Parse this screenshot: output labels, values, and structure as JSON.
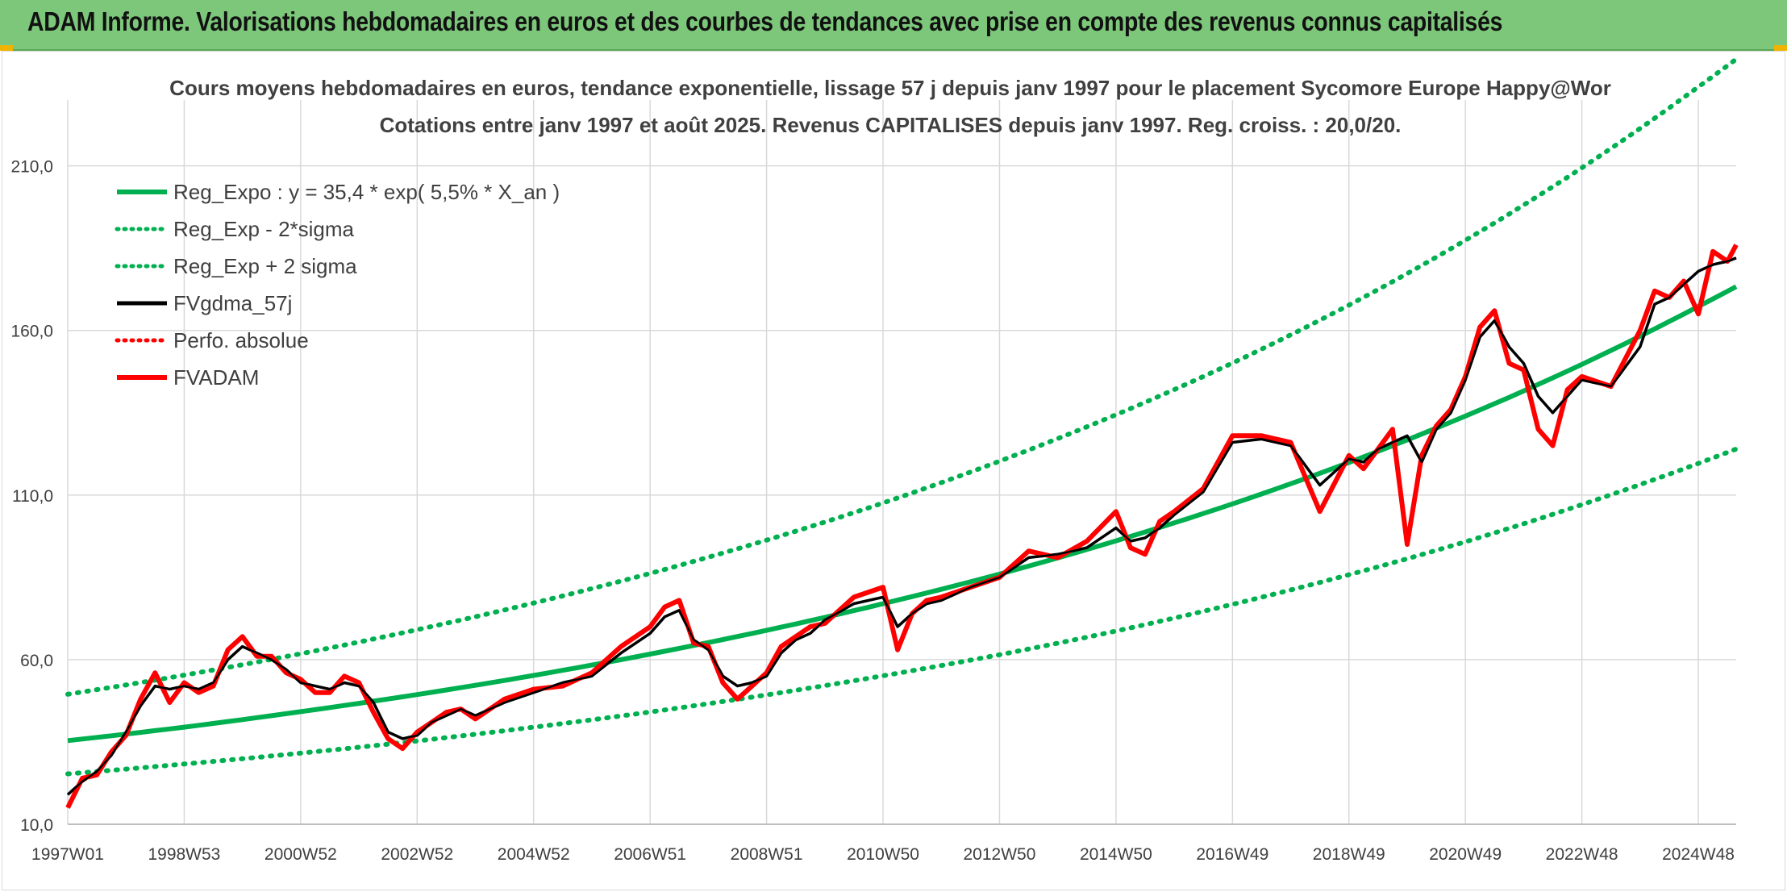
{
  "banner": {
    "title": "ADAM Informe. Valorisations hebdomadaires en euros et des courbes de tendances avec prise en compte des revenus connus capitalisés"
  },
  "colors": {
    "banner_bg": "#7cc77a",
    "trend_green": "#00b050",
    "smooth_black": "#000000",
    "price_red": "#ff0000",
    "grid": "#d9d9d9"
  },
  "chart_data": {
    "type": "line",
    "title": "Cours moyens hebdomadaires en euros, tendance exponentielle, lissage 57 j depuis janv 1997 pour le placement Sycomore Europe Happy@Wor",
    "subtitle": "Cotations entre janv 1997 et août 2025. Revenus CAPITALISES depuis janv 1997. Reg. croiss. : 20,0/20.",
    "xlabel": "",
    "ylabel": "",
    "ylim": [
      10,
      230
    ],
    "xlim": [
      1997.0,
      2025.65
    ],
    "grid": true,
    "legend_position": "top-left",
    "y_ticks": [
      "10,0",
      "60,0",
      "110,0",
      "160,0",
      "210,0"
    ],
    "y_tick_values": [
      10,
      60,
      110,
      160,
      210
    ],
    "x_ticks": [
      "1997W01",
      "1998W53",
      "2000W52",
      "2002W52",
      "2004W52",
      "2006W51",
      "2008W51",
      "2010W50",
      "2012W50",
      "2014W50",
      "2016W49",
      "2018W49",
      "2020W49",
      "2022W48",
      "2024W48"
    ],
    "x_tick_values": [
      1997.0,
      1999.0,
      2001.0,
      2003.0,
      2005.0,
      2007.0,
      2009.0,
      2011.0,
      2013.0,
      2015.0,
      2017.0,
      2019.0,
      2021.0,
      2023.0,
      2025.0
    ],
    "series": [
      {
        "name": "Reg_Expo : y = 35,4 * exp( 5,5% *  X_an )",
        "color": "#00b050",
        "style": "solid-thick",
        "x": [
          1997.0,
          1999.0,
          2001.0,
          2003.0,
          2005.0,
          2007.0,
          2009.0,
          2011.0,
          2013.0,
          2015.0,
          2017.0,
          2019.0,
          2021.0,
          2023.0,
          2025.0,
          2025.65
        ],
        "values": [
          35.4,
          39.5,
          44.2,
          49.4,
          55.2,
          61.7,
          68.9,
          77.0,
          86.0,
          96.1,
          107.3,
          119.9,
          134.0,
          149.7,
          167.3,
          173.3
        ]
      },
      {
        "name": "Reg_Exp - 2*sigma",
        "color": "#00b050",
        "style": "dotted",
        "x": [
          1997.0,
          1999.0,
          2001.0,
          2003.0,
          2005.0,
          2007.0,
          2009.0,
          2011.0,
          2013.0,
          2015.0,
          2017.0,
          2019.0,
          2021.0,
          2023.0,
          2025.0,
          2025.65
        ],
        "values": [
          25.3,
          28.3,
          31.6,
          35.3,
          39.5,
          44.1,
          49.3,
          55.1,
          61.5,
          68.7,
          76.8,
          85.8,
          95.8,
          107.1,
          119.6,
          124.0
        ]
      },
      {
        "name": "Reg_Exp + 2 sigma",
        "color": "#00b050",
        "style": "dotted",
        "x": [
          1997.0,
          1999.0,
          2001.0,
          2003.0,
          2005.0,
          2007.0,
          2009.0,
          2011.0,
          2013.0,
          2015.0,
          2017.0,
          2019.0,
          2021.0,
          2023.0,
          2025.0,
          2025.65
        ],
        "values": [
          49.5,
          55.3,
          61.8,
          69.1,
          77.2,
          86.2,
          96.3,
          107.6,
          120.3,
          134.4,
          150.1,
          167.7,
          187.4,
          209.4,
          234.0,
          242.4
        ]
      },
      {
        "name": "FVgdma_57j",
        "color": "#000000",
        "style": "solid",
        "x": [
          1997.0,
          1997.25,
          1997.5,
          1997.75,
          1998.0,
          1998.25,
          1998.5,
          1998.75,
          1999.0,
          1999.25,
          1999.5,
          1999.75,
          2000.0,
          2000.25,
          2000.5,
          2000.75,
          2001.0,
          2001.25,
          2001.5,
          2001.75,
          2002.0,
          2002.25,
          2002.5,
          2002.75,
          2003.0,
          2003.25,
          2003.5,
          2003.75,
          2004.0,
          2004.5,
          2005.0,
          2005.5,
          2006.0,
          2006.5,
          2007.0,
          2007.25,
          2007.5,
          2007.75,
          2008.0,
          2008.25,
          2008.5,
          2008.75,
          2009.0,
          2009.25,
          2009.5,
          2009.75,
          2010.0,
          2010.5,
          2011.0,
          2011.25,
          2011.5,
          2011.75,
          2012.0,
          2012.5,
          2013.0,
          2013.5,
          2014.0,
          2014.5,
          2015.0,
          2015.25,
          2015.5,
          2015.75,
          2016.0,
          2016.5,
          2017.0,
          2017.5,
          2018.0,
          2018.5,
          2019.0,
          2019.25,
          2019.5,
          2019.75,
          2020.0,
          2020.25,
          2020.5,
          2020.75,
          2021.0,
          2021.25,
          2021.5,
          2021.75,
          2022.0,
          2022.25,
          2022.5,
          2022.75,
          2023.0,
          2023.5,
          2024.0,
          2024.25,
          2024.5,
          2024.75,
          2025.0,
          2025.25,
          2025.5,
          2025.65
        ],
        "values": [
          19,
          23,
          26,
          31,
          38,
          46,
          52,
          51,
          52,
          51,
          53,
          60,
          64,
          62,
          60,
          57,
          53,
          52,
          51,
          53,
          52,
          47,
          38,
          36,
          37,
          41,
          43,
          45,
          43,
          47,
          50,
          53,
          55,
          62,
          68,
          73,
          75,
          66,
          63,
          55,
          52,
          53,
          55,
          62,
          66,
          68,
          72,
          77,
          79,
          70,
          74,
          77,
          78,
          82,
          85,
          91,
          92,
          94,
          100,
          96,
          97,
          100,
          104,
          111,
          126,
          127,
          125,
          113,
          121,
          120,
          124,
          126,
          128,
          120,
          130,
          135,
          145,
          158,
          163,
          155,
          150,
          140,
          135,
          140,
          145,
          143,
          155,
          168,
          170,
          174,
          178,
          180,
          181,
          182
        ]
      },
      {
        "name": "Perfo. absolue",
        "color": "#ff0000",
        "style": "dotted",
        "x": [],
        "values": []
      },
      {
        "name": "FVADAM",
        "color": "#ff0000",
        "style": "solid-thick",
        "x": [
          1997.0,
          1997.25,
          1997.5,
          1997.75,
          1998.0,
          1998.25,
          1998.5,
          1998.75,
          1999.0,
          1999.25,
          1999.5,
          1999.75,
          2000.0,
          2000.25,
          2000.5,
          2000.75,
          2001.0,
          2001.25,
          2001.5,
          2001.75,
          2002.0,
          2002.25,
          2002.5,
          2002.75,
          2003.0,
          2003.25,
          2003.5,
          2003.75,
          2004.0,
          2004.5,
          2005.0,
          2005.5,
          2006.0,
          2006.5,
          2007.0,
          2007.25,
          2007.5,
          2007.75,
          2008.0,
          2008.25,
          2008.5,
          2008.75,
          2009.0,
          2009.25,
          2009.5,
          2009.75,
          2010.0,
          2010.5,
          2011.0,
          2011.25,
          2011.5,
          2011.75,
          2012.0,
          2012.5,
          2013.0,
          2013.5,
          2014.0,
          2014.5,
          2015.0,
          2015.25,
          2015.5,
          2015.75,
          2016.0,
          2016.5,
          2017.0,
          2017.5,
          2018.0,
          2018.5,
          2019.0,
          2019.25,
          2019.5,
          2019.75,
          2020.0,
          2020.25,
          2020.5,
          2020.75,
          2021.0,
          2021.25,
          2021.5,
          2021.75,
          2022.0,
          2022.25,
          2022.5,
          2022.75,
          2023.0,
          2023.5,
          2024.0,
          2024.25,
          2024.5,
          2024.75,
          2025.0,
          2025.25,
          2025.5,
          2025.65
        ],
        "values": [
          15,
          24,
          25,
          32,
          37,
          48,
          56,
          47,
          53,
          50,
          52,
          63,
          67,
          61,
          61,
          56,
          54,
          50,
          50,
          55,
          53,
          44,
          36,
          33,
          38,
          41,
          44,
          45,
          42,
          48,
          51,
          52,
          56,
          64,
          70,
          76,
          78,
          65,
          64,
          53,
          48,
          52,
          56,
          64,
          67,
          70,
          71,
          79,
          82,
          63,
          74,
          78,
          79,
          82,
          85,
          93,
          91,
          96,
          105,
          94,
          92,
          102,
          105,
          112,
          128,
          128,
          126,
          105,
          122,
          118,
          124,
          130,
          95,
          122,
          131,
          136,
          146,
          161,
          166,
          150,
          148,
          130,
          125,
          142,
          146,
          143,
          160,
          172,
          170,
          175,
          165,
          184,
          181,
          186
        ]
      }
    ]
  }
}
